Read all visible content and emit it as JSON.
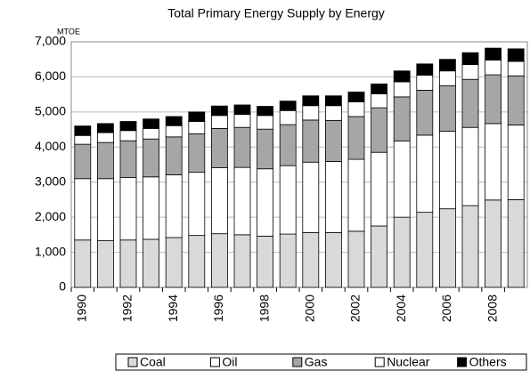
{
  "chart_data": {
    "type": "stacked_bar",
    "title": "Total Primary Energy Supply by Energy",
    "y_unit_label": "MTOE",
    "categories": [
      "1990",
      null,
      "1992",
      null,
      "1994",
      null,
      "1996",
      null,
      "1998",
      null,
      "2000",
      null,
      "2002",
      null,
      "2004",
      null,
      "2006",
      null,
      "2008",
      null
    ],
    "series": [
      {
        "name": "Coal",
        "color": "#d9d9d9",
        "values": [
          1350,
          1330,
          1350,
          1370,
          1420,
          1480,
          1530,
          1500,
          1460,
          1520,
          1560,
          1560,
          1600,
          1750,
          2000,
          2140,
          2240,
          2330,
          2490,
          2500
        ]
      },
      {
        "name": "Oil",
        "color": "#ffffff",
        "values": [
          1750,
          1770,
          1780,
          1780,
          1790,
          1800,
          1880,
          1920,
          1920,
          1950,
          2010,
          2030,
          2050,
          2100,
          2170,
          2200,
          2210,
          2230,
          2180,
          2130
        ]
      },
      {
        "name": "Gas",
        "color": "#a6a6a6",
        "values": [
          980,
          1030,
          1050,
          1080,
          1080,
          1100,
          1120,
          1140,
          1130,
          1170,
          1200,
          1170,
          1220,
          1270,
          1260,
          1280,
          1300,
          1370,
          1390,
          1400
        ]
      },
      {
        "name": "Nuclear",
        "color": "#ffffff",
        "values": [
          250,
          280,
          290,
          300,
          320,
          350,
          370,
          370,
          390,
          400,
          410,
          420,
          420,
          400,
          430,
          430,
          420,
          420,
          420,
          410
        ]
      },
      {
        "name": "Others",
        "color": "#000000",
        "values": [
          270,
          260,
          260,
          270,
          260,
          270,
          270,
          270,
          260,
          270,
          280,
          280,
          280,
          280,
          310,
          320,
          330,
          340,
          340,
          360
        ]
      }
    ],
    "ylim": [
      0,
      7000
    ],
    "yticks": [
      0,
      {
        "value": 1000,
        "label": "1,000"
      },
      {
        "value": 2000,
        "label": "2,000"
      },
      {
        "value": 3000,
        "label": "3,000"
      },
      {
        "value": 4000,
        "label": "4,000"
      },
      {
        "value": 5000,
        "label": "5,000"
      },
      {
        "value": 6000,
        "label": "6,000"
      },
      {
        "value": 7000,
        "label": "7,000"
      }
    ],
    "grid": true,
    "legend": "bottom"
  }
}
